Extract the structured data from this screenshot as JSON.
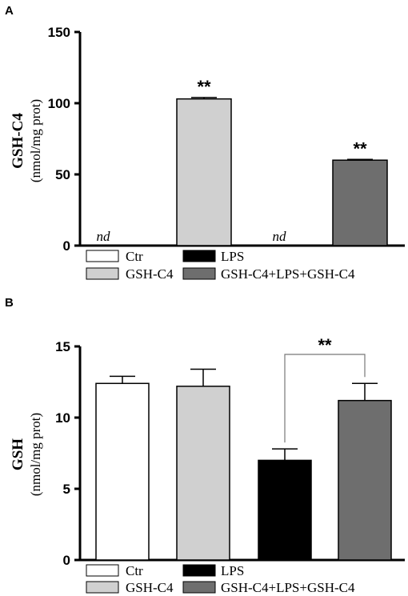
{
  "colors": {
    "Ctr": "#ffffff",
    "LPS": "#000000",
    "GSH-C4": "#d0d0d0",
    "GSH-C4+LPS+GSH-C4": "#6e6e6e"
  },
  "legend": [
    "Ctr",
    "LPS",
    "GSH-C4",
    "GSH-C4+LPS+GSH-C4"
  ],
  "chart_data": [
    {
      "panel": "A",
      "type": "bar",
      "categories": [
        "Ctr",
        "GSH-C4",
        "LPS",
        "GSH-C4+LPS+GSH-C4"
      ],
      "values": [
        0,
        103,
        0,
        60
      ],
      "errors": [
        0,
        1,
        0,
        0.5
      ],
      "bar_labels": [
        "nd",
        "**",
        "nd",
        "**"
      ],
      "ylabel": "GSH-C4",
      "yunit": "(nmol/mg prot)",
      "ylim": [
        0,
        150
      ],
      "yticks": [
        "0",
        "50",
        "100",
        "150"
      ],
      "ytick_values": [
        0,
        50,
        100,
        150
      ]
    },
    {
      "panel": "B",
      "type": "bar",
      "categories": [
        "Ctr",
        "GSH-C4",
        "LPS",
        "GSH-C4+LPS+GSH-C4"
      ],
      "values": [
        12.4,
        12.2,
        7.0,
        11.2
      ],
      "errors": [
        0.5,
        1.2,
        0.8,
        1.2
      ],
      "bar_labels": [
        "",
        "",
        "",
        ""
      ],
      "comparison": {
        "from": "LPS",
        "to": "GSH-C4+LPS+GSH-C4",
        "label": "**"
      },
      "ylabel": "GSH",
      "yunit": "(nmol/mg prot)",
      "ylim": [
        0,
        15
      ],
      "yticks": [
        "0",
        "5",
        "10",
        "15"
      ],
      "ytick_values": [
        0,
        5,
        10,
        15
      ]
    }
  ]
}
